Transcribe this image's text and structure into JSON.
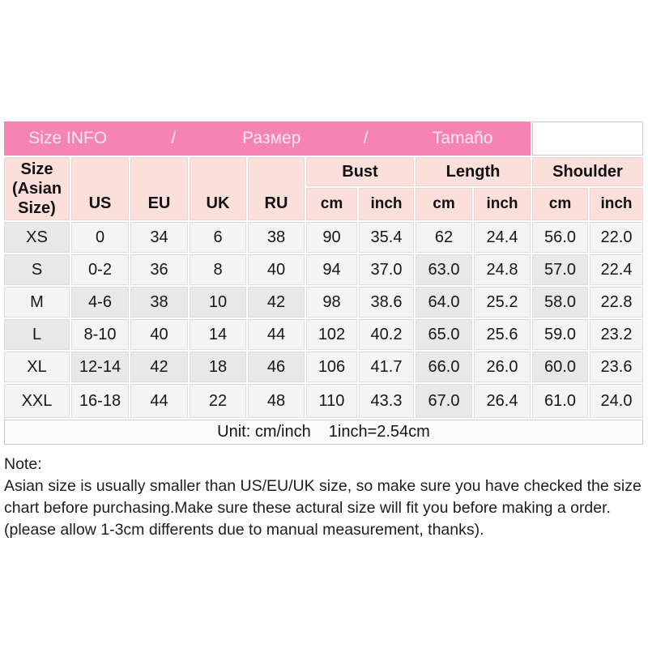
{
  "title_bar": {
    "tokens": [
      "Size INFO",
      "/",
      "Размер",
      "/",
      "Tamaño"
    ]
  },
  "table": {
    "corner_header": "Size (Asian Size)",
    "region_headers": [
      "US",
      "EU",
      "UK",
      "RU"
    ],
    "group_headers": [
      "Bust",
      "Length",
      "Shoulder"
    ],
    "sub_headers": [
      "cm",
      "inch"
    ],
    "rows": [
      [
        "XS",
        "0",
        "34",
        "6",
        "38",
        "90",
        "35.4",
        "62",
        "24.4",
        "56.0",
        "22.0"
      ],
      [
        "S",
        "0-2",
        "36",
        "8",
        "40",
        "94",
        "37.0",
        "63.0",
        "24.8",
        "57.0",
        "22.4"
      ],
      [
        "M",
        "4-6",
        "38",
        "10",
        "42",
        "98",
        "38.6",
        "64.0",
        "25.2",
        "58.0",
        "22.8"
      ],
      [
        "L",
        "8-10",
        "40",
        "14",
        "44",
        "102",
        "40.2",
        "65.0",
        "25.6",
        "59.0",
        "23.2"
      ],
      [
        "XL",
        "12-14",
        "42",
        "18",
        "46",
        "106",
        "41.7",
        "66.0",
        "26.0",
        "60.0",
        "23.6"
      ],
      [
        "XXL",
        "16-18",
        "44",
        "22",
        "48",
        "110",
        "43.3",
        "67.0",
        "26.4",
        "61.0",
        "24.0"
      ]
    ],
    "footer_unit": "Unit: cm/inch",
    "footer_conversion": "1inch=2.54cm"
  },
  "note": {
    "label": "Note:",
    "body": "Asian size is usually smaller than US/EU/UK size, so make sure you have checked the size chart before purchasing.Make sure these actural size will fit you before making a order.(please allow 1-3cm differents due to manual measurement, thanks)."
  },
  "colors": {
    "title_bar_pink": "#f584b2",
    "header_cell_pink": "#fbdfdb",
    "cell_base": "#f4f4f4",
    "cell_shaded": "#e8e8e8"
  }
}
